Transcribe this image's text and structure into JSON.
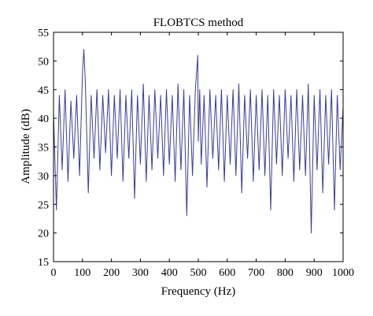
{
  "chart_data": {
    "type": "line",
    "title": "FLOBTCS method",
    "xlabel": "Frequency (Hz)",
    "ylabel": "Amplitude (dB)",
    "xlim": [
      0,
      1000
    ],
    "ylim": [
      15,
      55
    ],
    "xticks": [
      0,
      100,
      200,
      300,
      400,
      500,
      600,
      700,
      800,
      900,
      1000
    ],
    "yticks": [
      15,
      20,
      25,
      30,
      35,
      40,
      45,
      50,
      55
    ],
    "grid": false,
    "line_color": "#3b3b9a",
    "series": [
      {
        "x": [
          0,
          10,
          20,
          30,
          40,
          50,
          60,
          70,
          80,
          90,
          100,
          105,
          110,
          120,
          130,
          140,
          150,
          160,
          170,
          180,
          190,
          200,
          210,
          220,
          230,
          240,
          250,
          260,
          270,
          280,
          290,
          300,
          310,
          320,
          330,
          340,
          350,
          360,
          370,
          380,
          390,
          400,
          410,
          420,
          430,
          440,
          450,
          460,
          470,
          480,
          490,
          498,
          500,
          505,
          510,
          520,
          530,
          540,
          550,
          560,
          570,
          580,
          590,
          600,
          610,
          620,
          630,
          640,
          650,
          660,
          670,
          680,
          690,
          700,
          710,
          720,
          730,
          740,
          750,
          760,
          770,
          780,
          790,
          800,
          810,
          820,
          830,
          840,
          850,
          860,
          870,
          880,
          890,
          900,
          910,
          920,
          930,
          940,
          950,
          960,
          970,
          980,
          990,
          1000
        ],
        "values": [
          41,
          24,
          44,
          31,
          45,
          29,
          43,
          33,
          44,
          30,
          48,
          52,
          46,
          27,
          44,
          33,
          45,
          31,
          44,
          34,
          45,
          30,
          44,
          33,
          45,
          29,
          44,
          33,
          45,
          26,
          44,
          32,
          46,
          29,
          44,
          31,
          45,
          33,
          44,
          30,
          45,
          32,
          44,
          29,
          46,
          31,
          45,
          23,
          44,
          30,
          45,
          51,
          36,
          45,
          32,
          44,
          28,
          45,
          33,
          44,
          31,
          45,
          29,
          44,
          32,
          45,
          30,
          46,
          27,
          44,
          33,
          45,
          29,
          44,
          31,
          45,
          30,
          44,
          24,
          45,
          32,
          44,
          30,
          45,
          33,
          44,
          29,
          45,
          31,
          44,
          30,
          46,
          20,
          44,
          31,
          45,
          27,
          44,
          32,
          45,
          24,
          44,
          31,
          42
        ]
      }
    ]
  }
}
